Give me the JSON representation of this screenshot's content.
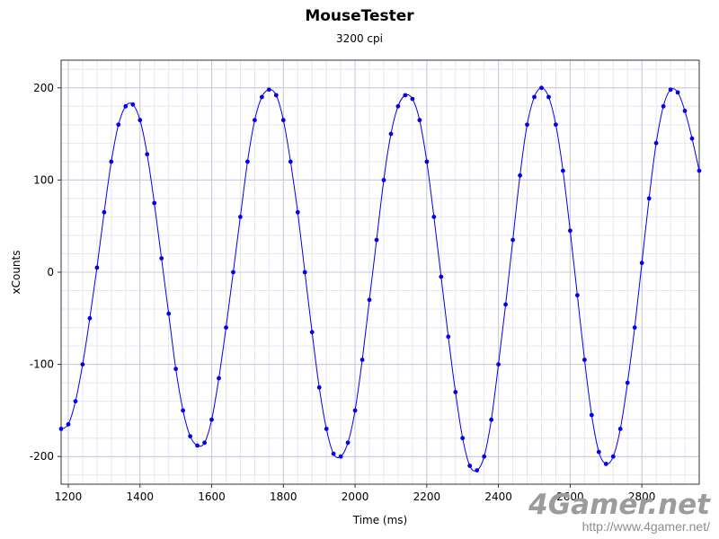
{
  "chart_data": {
    "type": "scatter",
    "title": "MouseTester",
    "subtitle": "3200 cpi",
    "xlabel": "Time (ms)",
    "ylabel": "xCounts",
    "xlim": [
      1180,
      2960
    ],
    "ylim": [
      -230,
      230
    ],
    "x_ticks": [
      1200,
      1400,
      1600,
      1800,
      2000,
      2200,
      2400,
      2600,
      2800
    ],
    "y_ticks": [
      -200,
      -100,
      0,
      100,
      200
    ],
    "grid": true,
    "marker_color": "#0000ee",
    "line_color": "#0000ee",
    "series": [
      {
        "x": [
          1180,
          1200,
          1220,
          1240,
          1260,
          1280,
          1300,
          1320,
          1340,
          1360,
          1380,
          1400,
          1420,
          1440,
          1460,
          1480,
          1500,
          1520,
          1540,
          1560,
          1580,
          1600,
          1620,
          1640,
          1660,
          1680,
          1700,
          1720,
          1740,
          1760,
          1780,
          1800,
          1820,
          1840,
          1860,
          1880,
          1900,
          1920,
          1940,
          1960,
          1980,
          2000,
          2020,
          2040,
          2060,
          2080,
          2100,
          2120,
          2140,
          2160,
          2180,
          2200,
          2220,
          2240,
          2260,
          2280,
          2300,
          2320,
          2340,
          2360,
          2380,
          2400,
          2420,
          2440,
          2460,
          2480,
          2500,
          2520,
          2540,
          2560,
          2580,
          2600,
          2620,
          2640,
          2660,
          2680,
          2700,
          2720,
          2740,
          2760,
          2780,
          2800,
          2820,
          2840,
          2860,
          2880,
          2900,
          2920,
          2940,
          2960
        ],
        "y": [
          -170,
          -165,
          -140,
          -100,
          -50,
          5,
          65,
          120,
          160,
          180,
          182,
          165,
          128,
          75,
          15,
          -45,
          -105,
          -150,
          -178,
          -188,
          -185,
          -160,
          -115,
          -60,
          0,
          60,
          120,
          165,
          190,
          198,
          192,
          165,
          120,
          65,
          0,
          -65,
          -125,
          -170,
          -197,
          -200,
          -185,
          -150,
          -95,
          -30,
          35,
          100,
          150,
          180,
          192,
          188,
          165,
          120,
          60,
          -5,
          -70,
          -130,
          -180,
          -210,
          -215,
          -200,
          -160,
          -100,
          -35,
          35,
          105,
          160,
          190,
          200,
          190,
          160,
          110,
          45,
          -25,
          -95,
          -155,
          -195,
          -208,
          -200,
          -170,
          -120,
          -60,
          10,
          80,
          140,
          180,
          198,
          195,
          175,
          145,
          110
        ]
      }
    ]
  },
  "watermark": {
    "logo": "4Gamer.net",
    "url": "http://www.4gamer.net/"
  }
}
